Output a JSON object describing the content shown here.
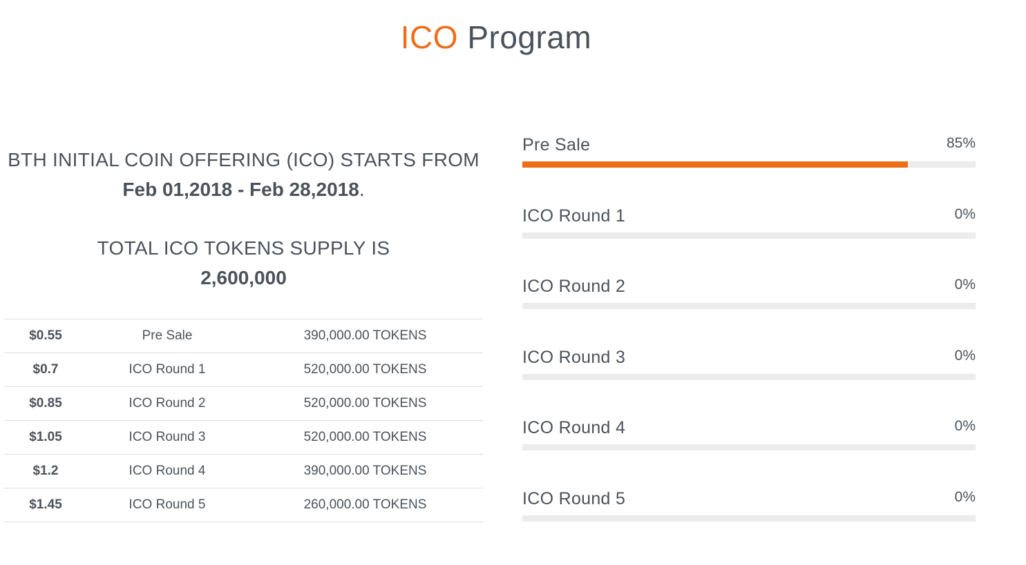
{
  "title": {
    "accent": "ICO",
    "rest": "Program"
  },
  "info": {
    "starts_text": "BTH INITIAL COIN OFFERING (ICO) STARTS FROM",
    "dates": "Feb 01,2018 - Feb 28,2018",
    "dates_suffix": ".",
    "supply_text": "TOTAL ICO TOKENS SUPPLY IS",
    "supply_value": "2,600,000"
  },
  "rounds": [
    {
      "price": "$0.55",
      "name": "Pre Sale",
      "tokens": "390,000.00 TOKENS"
    },
    {
      "price": "$0.7",
      "name": "ICO Round 1",
      "tokens": "520,000.00 TOKENS"
    },
    {
      "price": "$0.85",
      "name": "ICO Round 2",
      "tokens": "520,000.00 TOKENS"
    },
    {
      "price": "$1.05",
      "name": "ICO Round 3",
      "tokens": "520,000.00 TOKENS"
    },
    {
      "price": "$1.2",
      "name": "ICO Round 4",
      "tokens": "390,000.00 TOKENS"
    },
    {
      "price": "$1.45",
      "name": "ICO Round 5",
      "tokens": "260,000.00 TOKENS"
    }
  ],
  "progress": [
    {
      "label": "Pre Sale",
      "value_text": "85%",
      "percent": 85
    },
    {
      "label": "ICO Round 1",
      "value_text": "0%",
      "percent": 0
    },
    {
      "label": "ICO Round 2",
      "value_text": "0%",
      "percent": 0
    },
    {
      "label": "ICO Round 3",
      "value_text": "0%",
      "percent": 0
    },
    {
      "label": "ICO Round 4",
      "value_text": "0%",
      "percent": 0
    },
    {
      "label": "ICO Round 5",
      "value_text": "0%",
      "percent": 0
    }
  ],
  "colors": {
    "accent": "#ee6d18",
    "text": "#4a525b",
    "track": "#ececec"
  }
}
